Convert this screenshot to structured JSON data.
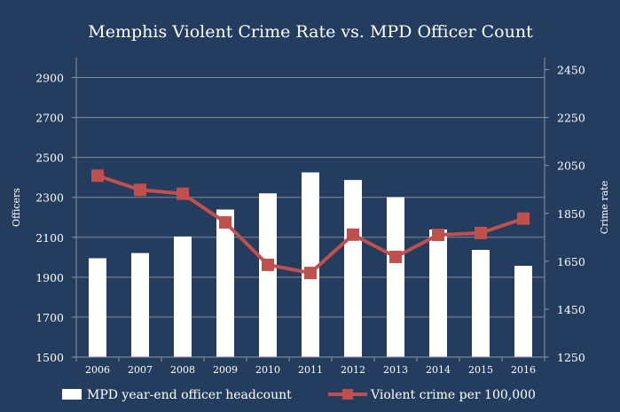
{
  "chart_data": {
    "type": "bar+line",
    "title": "Memphis Violent Crime Rate vs. MPD Officer Count",
    "categories": [
      "2006",
      "2007",
      "2008",
      "2009",
      "2010",
      "2011",
      "2012",
      "2013",
      "2014",
      "2015",
      "2016"
    ],
    "series": [
      {
        "name": "MPD year-end officer headcount",
        "type": "bar",
        "axis": "left",
        "color": "#ffffff",
        "values": [
          1995,
          2021,
          2104,
          2239,
          2320,
          2425,
          2387,
          2301,
          2139,
          2037,
          1957
        ]
      },
      {
        "name": "Violent crime per 100,000",
        "type": "line",
        "axis": "right",
        "color": "#c0504d",
        "marker": "square",
        "values": [
          2007,
          1948,
          1932,
          1812,
          1635,
          1601,
          1761,
          1668,
          1760,
          1768,
          1828
        ]
      }
    ],
    "ylabel": "Officers",
    "y2label": "Crime rate",
    "ylim": [
      1500,
      3000
    ],
    "y2lim": [
      1250,
      2500
    ],
    "yticks": [
      1500,
      1700,
      1900,
      2100,
      2300,
      2500,
      2700,
      2900
    ],
    "y2ticks": [
      1250,
      1450,
      1650,
      1850,
      2050,
      2250,
      2450
    ],
    "grid": true,
    "legend": "bottom",
    "background": "#243d5e"
  }
}
